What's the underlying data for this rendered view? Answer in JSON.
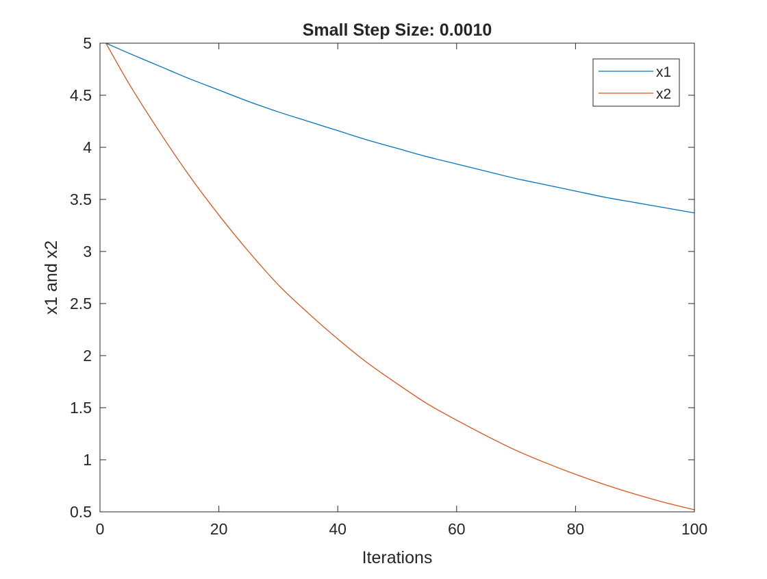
{
  "chart_data": {
    "type": "line",
    "title": "Small Step Size: 0.0010",
    "xlabel": "Iterations",
    "ylabel": "x1 and x2",
    "xlim": [
      0,
      100
    ],
    "ylim": [
      0.5,
      5
    ],
    "xticks": [
      0,
      20,
      40,
      60,
      80,
      100
    ],
    "xtick_labels": [
      "0",
      "20",
      "40",
      "60",
      "80",
      "100"
    ],
    "yticks": [
      0.5,
      1,
      1.5,
      2,
      2.5,
      3,
      3.5,
      4,
      4.5,
      5
    ],
    "ytick_labels": [
      "0.5",
      "1",
      "1.5",
      "2",
      "2.5",
      "3",
      "3.5",
      "4",
      "4.5",
      "5"
    ],
    "grid": false,
    "legend": "top-right",
    "x": [
      1,
      5,
      10,
      15,
      20,
      25,
      30,
      35,
      40,
      45,
      50,
      55,
      60,
      65,
      70,
      75,
      80,
      85,
      90,
      95,
      100
    ],
    "series": [
      {
        "name": "x1",
        "color": "#0072BD",
        "values": [
          5.0,
          4.9,
          4.78,
          4.66,
          4.55,
          4.44,
          4.34,
          4.25,
          4.16,
          4.07,
          3.99,
          3.91,
          3.84,
          3.77,
          3.7,
          3.64,
          3.58,
          3.52,
          3.47,
          3.42,
          3.37
        ]
      },
      {
        "name": "x2",
        "color": "#D95319",
        "values": [
          5.0,
          4.6,
          4.15,
          3.73,
          3.35,
          3.0,
          2.68,
          2.41,
          2.16,
          1.93,
          1.73,
          1.54,
          1.38,
          1.23,
          1.09,
          0.97,
          0.86,
          0.76,
          0.67,
          0.59,
          0.52
        ]
      }
    ]
  }
}
